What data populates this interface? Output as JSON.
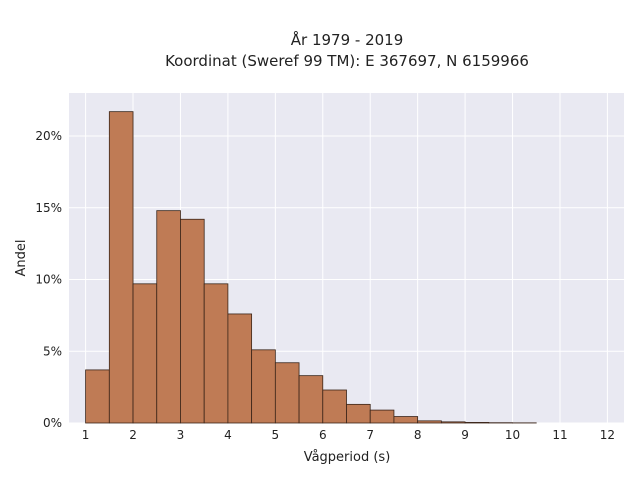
{
  "chart_data": {
    "type": "bar",
    "title_line1": "År 1979 - 2019",
    "title_line2": "Koordinat (Sweref 99 TM): E 367697, N 6159966",
    "xlabel": "Vågperiod (s)",
    "ylabel": "Andel",
    "xlim": [
      0.65,
      12.35
    ],
    "ylim": [
      0,
      0.23
    ],
    "x_ticks": [
      1,
      2,
      3,
      4,
      5,
      6,
      7,
      8,
      9,
      10,
      11,
      12
    ],
    "y_ticks": [
      {
        "value": 0,
        "label": "0%"
      },
      {
        "value": 0.05,
        "label": "5%"
      },
      {
        "value": 0.1,
        "label": "10%"
      },
      {
        "value": 0.15,
        "label": "15%"
      },
      {
        "value": 0.2,
        "label": "20%"
      }
    ],
    "bin_width": 0.5,
    "bins": [
      {
        "start": 1.0,
        "value": 0.037
      },
      {
        "start": 1.5,
        "value": 0.217
      },
      {
        "start": 2.0,
        "value": 0.097
      },
      {
        "start": 2.5,
        "value": 0.148
      },
      {
        "start": 3.0,
        "value": 0.142
      },
      {
        "start": 3.5,
        "value": 0.097
      },
      {
        "start": 4.0,
        "value": 0.076
      },
      {
        "start": 4.5,
        "value": 0.051
      },
      {
        "start": 5.0,
        "value": 0.042
      },
      {
        "start": 5.5,
        "value": 0.033
      },
      {
        "start": 6.0,
        "value": 0.023
      },
      {
        "start": 6.5,
        "value": 0.013
      },
      {
        "start": 7.0,
        "value": 0.009
      },
      {
        "start": 7.5,
        "value": 0.0045
      },
      {
        "start": 8.0,
        "value": 0.0015
      },
      {
        "start": 8.5,
        "value": 0.0008
      },
      {
        "start": 9.0,
        "value": 0.0004
      },
      {
        "start": 9.5,
        "value": 0.0002
      },
      {
        "start": 10.0,
        "value": 0.0001
      }
    ],
    "grid": true,
    "colors": {
      "bar_fill": "#bf7b55",
      "bar_edge": "#3a2418",
      "plot_bg": "#e9e9f2",
      "grid": "#ffffff"
    }
  }
}
